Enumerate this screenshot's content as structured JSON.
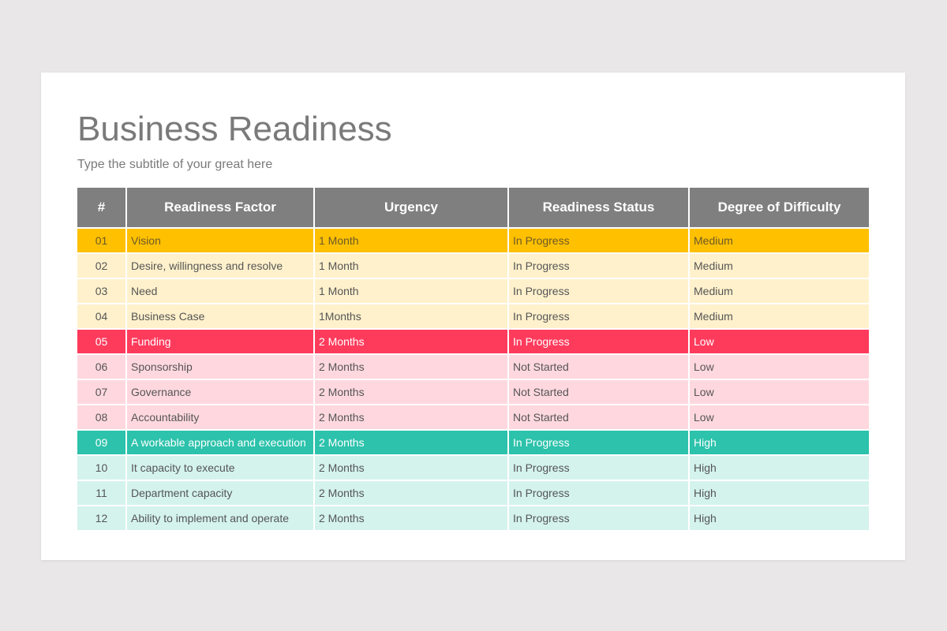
{
  "page": {
    "title": "Business Readiness",
    "subtitle": "Type the subtitle of your great here"
  },
  "colors": {
    "header": "#7f7f7f",
    "gold": "#ffc000",
    "gold_light": "#fff1cc",
    "red": "#ff3b5c",
    "red_light": "#ffd8df",
    "teal": "#2cc2ab",
    "teal_light": "#d4f3ed"
  },
  "table": {
    "headers": [
      "#",
      "Readiness Factor",
      "Urgency",
      "Readiness Status",
      "Degree of Difficulty"
    ],
    "rows": [
      {
        "num": "01",
        "factor": "Vision",
        "urgency": "1 Month",
        "status": "In Progress",
        "difficulty": "Medium",
        "color": "#ffc000",
        "highlight": true,
        "group": "gold"
      },
      {
        "num": "02",
        "factor": "Desire, willingness and resolve",
        "urgency": "1 Month",
        "status": "In Progress",
        "difficulty": "Medium",
        "color": "#fff1cc",
        "highlight": false,
        "group": "gold"
      },
      {
        "num": "03",
        "factor": "Need",
        "urgency": "1 Month",
        "status": "In Progress",
        "difficulty": "Medium",
        "color": "#fff1cc",
        "highlight": false,
        "group": "gold"
      },
      {
        "num": "04",
        "factor": "Business Case",
        "urgency": "1Months",
        "status": "In Progress",
        "difficulty": "Medium",
        "color": "#fff1cc",
        "highlight": false,
        "group": "gold"
      },
      {
        "num": "05",
        "factor": "Funding",
        "urgency": "2 Months",
        "status": "In Progress",
        "difficulty": "Low",
        "color": "#ff3b5c",
        "highlight": true,
        "group": "red"
      },
      {
        "num": "06",
        "factor": "Sponsorship",
        "urgency": "2 Months",
        "status": "Not Started",
        "difficulty": "Low",
        "color": "#ffd8df",
        "highlight": false,
        "group": "red"
      },
      {
        "num": "07",
        "factor": "Governance",
        "urgency": "2 Months",
        "status": "Not Started",
        "difficulty": "Low",
        "color": "#ffd8df",
        "highlight": false,
        "group": "red"
      },
      {
        "num": "08",
        "factor": "Accountability",
        "urgency": "2 Months",
        "status": "Not Started",
        "difficulty": "Low",
        "color": "#ffd8df",
        "highlight": false,
        "group": "red"
      },
      {
        "num": "09",
        "factor": "A workable approach and execution",
        "urgency": "2 Months",
        "status": "In Progress",
        "difficulty": "High",
        "color": "#2cc2ab",
        "highlight": true,
        "group": "teal"
      },
      {
        "num": "10",
        "factor": "It capacity to execute",
        "urgency": "2 Months",
        "status": "In Progress",
        "difficulty": "High",
        "color": "#d4f3ed",
        "highlight": false,
        "group": "teal"
      },
      {
        "num": "11",
        "factor": "Department capacity",
        "urgency": "2 Months",
        "status": "In Progress",
        "difficulty": "High",
        "color": "#d4f3ed",
        "highlight": false,
        "group": "teal"
      },
      {
        "num": "12",
        "factor": "Ability to implement and operate",
        "urgency": "2 Months",
        "status": "In Progress",
        "difficulty": "High",
        "color": "#d4f3ed",
        "highlight": false,
        "group": "teal"
      }
    ]
  }
}
